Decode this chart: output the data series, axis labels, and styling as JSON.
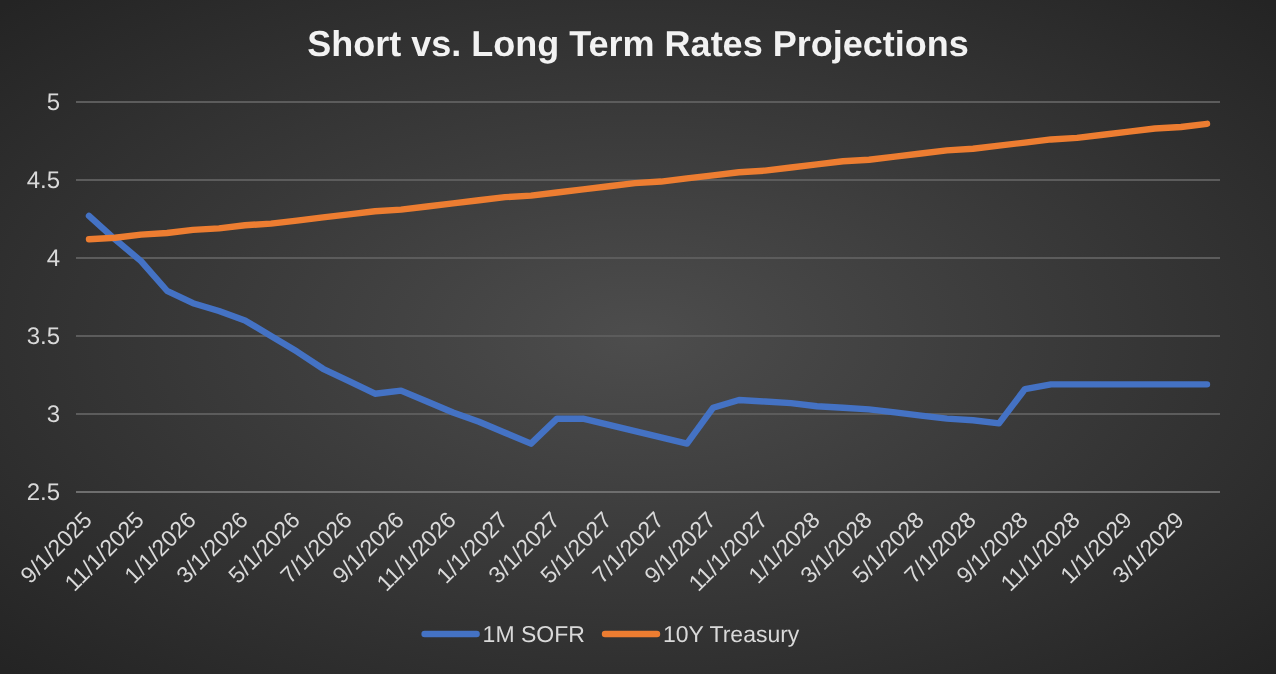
{
  "chart_data": {
    "type": "line",
    "title": "Short vs. Long Term Rates Projections",
    "categories": [
      "9/1/2025",
      null,
      "11/1/2025",
      null,
      "1/1/2026",
      null,
      "3/1/2026",
      null,
      "5/1/2026",
      null,
      "7/1/2026",
      null,
      "9/1/2026",
      null,
      "11/1/2026",
      null,
      "1/1/2027",
      null,
      "3/1/2027",
      null,
      "5/1/2027",
      null,
      "7/1/2027",
      null,
      "9/1/2027",
      null,
      "11/1/2027",
      null,
      "1/1/2028",
      null,
      "3/1/2028",
      null,
      "5/1/2028",
      null,
      "7/1/2028",
      null,
      "9/1/2028",
      null,
      "11/1/2028",
      null,
      "1/1/2029",
      null,
      "3/1/2029",
      null
    ],
    "series": [
      {
        "name": "1M SOFR",
        "color": "#4472c4",
        "values": [
          4.27,
          4.12,
          3.98,
          3.79,
          3.71,
          3.66,
          3.6,
          3.5,
          3.4,
          3.29,
          3.21,
          3.13,
          3.15,
          3.08,
          3.01,
          2.95,
          2.88,
          2.81,
          2.97,
          2.97,
          2.93,
          2.89,
          2.85,
          2.81,
          3.04,
          3.09,
          3.08,
          3.07,
          3.05,
          3.04,
          3.03,
          3.01,
          2.99,
          2.97,
          2.96,
          2.94,
          3.16,
          3.19,
          3.19,
          3.19,
          3.19,
          3.19,
          3.19,
          3.19
        ]
      },
      {
        "name": "10Y Treasury",
        "color": "#ed7d31",
        "values": [
          4.12,
          4.13,
          4.15,
          4.16,
          4.18,
          4.19,
          4.21,
          4.22,
          4.24,
          4.26,
          4.28,
          4.3,
          4.31,
          4.33,
          4.35,
          4.37,
          4.39,
          4.4,
          4.42,
          4.44,
          4.46,
          4.48,
          4.49,
          4.51,
          4.53,
          4.55,
          4.56,
          4.58,
          4.6,
          4.62,
          4.63,
          4.65,
          4.67,
          4.69,
          4.7,
          4.72,
          4.74,
          4.76,
          4.77,
          4.79,
          4.81,
          4.83,
          4.84,
          4.86
        ]
      }
    ],
    "ylim": [
      2.5,
      5
    ],
    "yticks": [
      2.5,
      3,
      3.5,
      4,
      4.5,
      5
    ],
    "grid": "y",
    "legend": "bottom",
    "marker": "none",
    "line_style": "solid"
  }
}
